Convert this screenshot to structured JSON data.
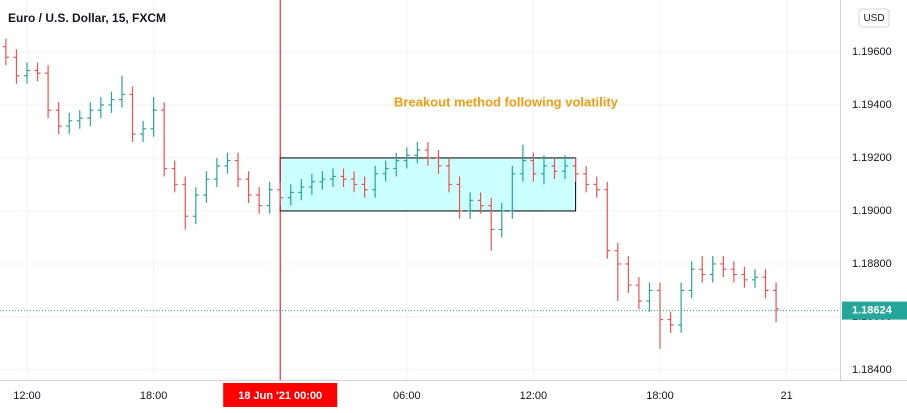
{
  "chart_data": {
    "type": "ohlc",
    "title": "Euro / U.S. Dollar, 15, FXCM",
    "currency": "USD",
    "annotation": {
      "text": "Breakout method following volatility",
      "color": "#f39c12"
    },
    "up_color": "#26a69a",
    "down_color": "#ef5350",
    "xlim": [
      10.72,
      50.53
    ],
    "ylim": [
      1.18362,
      1.19796
    ],
    "xticks": [
      {
        "value": 12,
        "label": "12:00"
      },
      {
        "value": 18,
        "label": "18:00"
      },
      {
        "value": 24,
        "label": "18 Jun '21  00:00"
      },
      {
        "value": 30,
        "label": "06:00"
      },
      {
        "value": 36,
        "label": "12:00"
      },
      {
        "value": 42,
        "label": "18:00"
      },
      {
        "value": 48,
        "label": "21"
      }
    ],
    "yticks": [
      {
        "value": 1.196,
        "label": "1.19600"
      },
      {
        "value": 1.194,
        "label": "1.19400"
      },
      {
        "value": 1.192,
        "label": "1.19200"
      },
      {
        "value": 1.19,
        "label": "1.19000"
      },
      {
        "value": 1.188,
        "label": "1.18800"
      },
      {
        "value": 1.186,
        "label": "1.18600"
      },
      {
        "value": 1.184,
        "label": "1.18400"
      }
    ],
    "grid": true,
    "crosshair": {
      "x": 24,
      "color": "#ff0000"
    },
    "last_price": 1.18624,
    "box": {
      "x": [
        24,
        38
      ],
      "y": [
        1.19,
        1.192
      ],
      "color": "#ccffff"
    },
    "x": [
      11,
      11.5,
      12,
      12.5,
      13,
      13.5,
      14,
      14.5,
      15,
      15.5,
      16,
      16.5,
      17,
      17.5,
      18,
      18.5,
      19,
      19.5,
      20,
      20.5,
      21,
      21.5,
      22,
      22.5,
      23,
      23.5,
      24,
      24.5,
      25,
      25.5,
      26,
      26.5,
      27,
      27.5,
      28,
      28.5,
      29,
      29.5,
      30,
      30.5,
      31,
      31.5,
      32,
      32.5,
      33,
      33.5,
      34,
      34.5,
      35,
      35.5,
      36,
      36.5,
      37,
      37.5,
      38,
      38.5,
      39,
      39.5,
      40,
      40.5,
      41,
      41.5,
      42,
      42.5,
      43,
      43.5,
      44,
      44.5,
      45,
      45.5,
      46,
      46.5,
      47,
      47.5
    ],
    "open": [
      1.1962,
      1.1958,
      1.1951,
      1.1953,
      1.1952,
      1.1938,
      1.1932,
      1.1934,
      1.1935,
      1.1938,
      1.194,
      1.1942,
      1.1944,
      1.1929,
      1.1931,
      1.1938,
      1.1916,
      1.191,
      1.1898,
      1.1906,
      1.1912,
      1.1917,
      1.1919,
      1.1912,
      1.1906,
      1.1902,
      1.1908,
      1.1905,
      1.1907,
      1.1909,
      1.1911,
      1.1912,
      1.1913,
      1.1912,
      1.191,
      1.1908,
      1.1914,
      1.1916,
      1.1919,
      1.1921,
      1.1923,
      1.192,
      1.1917,
      1.191,
      1.19,
      1.1904,
      1.1902,
      1.1893,
      1.19,
      1.1914,
      1.1919,
      1.1914,
      1.1917,
      1.1915,
      1.1917,
      1.1914,
      1.191,
      1.1908,
      1.1885,
      1.188,
      1.1872,
      1.1866,
      1.187,
      1.1859,
      1.1857,
      1.187,
      1.1878,
      1.1876,
      1.188,
      1.1878,
      1.1876,
      1.1874,
      1.1875,
      1.187
    ],
    "high": [
      1.1965,
      1.1961,
      1.1956,
      1.1956,
      1.1955,
      1.1941,
      1.1937,
      1.1938,
      1.1941,
      1.1943,
      1.1945,
      1.1951,
      1.1947,
      1.1934,
      1.1943,
      1.1941,
      1.1919,
      1.1913,
      1.1909,
      1.1915,
      1.192,
      1.1922,
      1.1922,
      1.1915,
      1.1909,
      1.1911,
      1.1911,
      1.191,
      1.1912,
      1.1914,
      1.1915,
      1.1916,
      1.1916,
      1.1915,
      1.1913,
      1.1917,
      1.1919,
      1.1922,
      1.1924,
      1.1926,
      1.1926,
      1.1923,
      1.192,
      1.1913,
      1.1907,
      1.1907,
      1.1905,
      1.1903,
      1.1917,
      1.1925,
      1.1922,
      1.1921,
      1.192,
      1.1921,
      1.192,
      1.1917,
      1.1913,
      1.1911,
      1.1888,
      1.1883,
      1.1875,
      1.1873,
      1.1873,
      1.1862,
      1.1873,
      1.1881,
      1.1883,
      1.1883,
      1.1883,
      1.1881,
      1.1879,
      1.1878,
      1.1878,
      1.1873
    ],
    "low": [
      1.1955,
      1.1948,
      1.1948,
      1.1949,
      1.1935,
      1.1929,
      1.1929,
      1.1931,
      1.1932,
      1.1935,
      1.1937,
      1.1939,
      1.1926,
      1.1926,
      1.1928,
      1.1913,
      1.1907,
      1.1893,
      1.1895,
      1.1903,
      1.1909,
      1.1914,
      1.1909,
      1.1903,
      1.1899,
      1.1899,
      1.1902,
      1.1902,
      1.1904,
      1.1906,
      1.1908,
      1.1909,
      1.1909,
      1.1907,
      1.1905,
      1.1905,
      1.1911,
      1.1913,
      1.1916,
      1.1918,
      1.1917,
      1.1914,
      1.1907,
      1.1897,
      1.1897,
      1.1899,
      1.1885,
      1.189,
      1.1897,
      1.1911,
      1.1911,
      1.191,
      1.1912,
      1.1912,
      1.1911,
      1.1907,
      1.1905,
      1.1882,
      1.1866,
      1.1869,
      1.1863,
      1.1862,
      1.1848,
      1.1854,
      1.1854,
      1.1867,
      1.1873,
      1.1873,
      1.1875,
      1.1873,
      1.1871,
      1.1871,
      1.1867,
      1.1858
    ],
    "close": [
      1.1958,
      1.1951,
      1.1953,
      1.1952,
      1.1938,
      1.1932,
      1.1934,
      1.1935,
      1.1938,
      1.194,
      1.1942,
      1.1944,
      1.1929,
      1.1931,
      1.1938,
      1.1916,
      1.191,
      1.1898,
      1.1906,
      1.1912,
      1.1917,
      1.1919,
      1.1912,
      1.1906,
      1.1902,
      1.1908,
      1.1905,
      1.1907,
      1.1909,
      1.1911,
      1.1912,
      1.1913,
      1.1912,
      1.191,
      1.1908,
      1.1914,
      1.1916,
      1.1919,
      1.1921,
      1.1923,
      1.192,
      1.1917,
      1.191,
      1.19,
      1.1904,
      1.1902,
      1.1893,
      1.19,
      1.1914,
      1.1919,
      1.1914,
      1.1917,
      1.1915,
      1.1917,
      1.1914,
      1.191,
      1.1908,
      1.1885,
      1.188,
      1.1872,
      1.1866,
      1.187,
      1.1859,
      1.1857,
      1.187,
      1.1878,
      1.1876,
      1.188,
      1.1878,
      1.1876,
      1.1874,
      1.1875,
      1.187,
      1.1863
    ]
  }
}
